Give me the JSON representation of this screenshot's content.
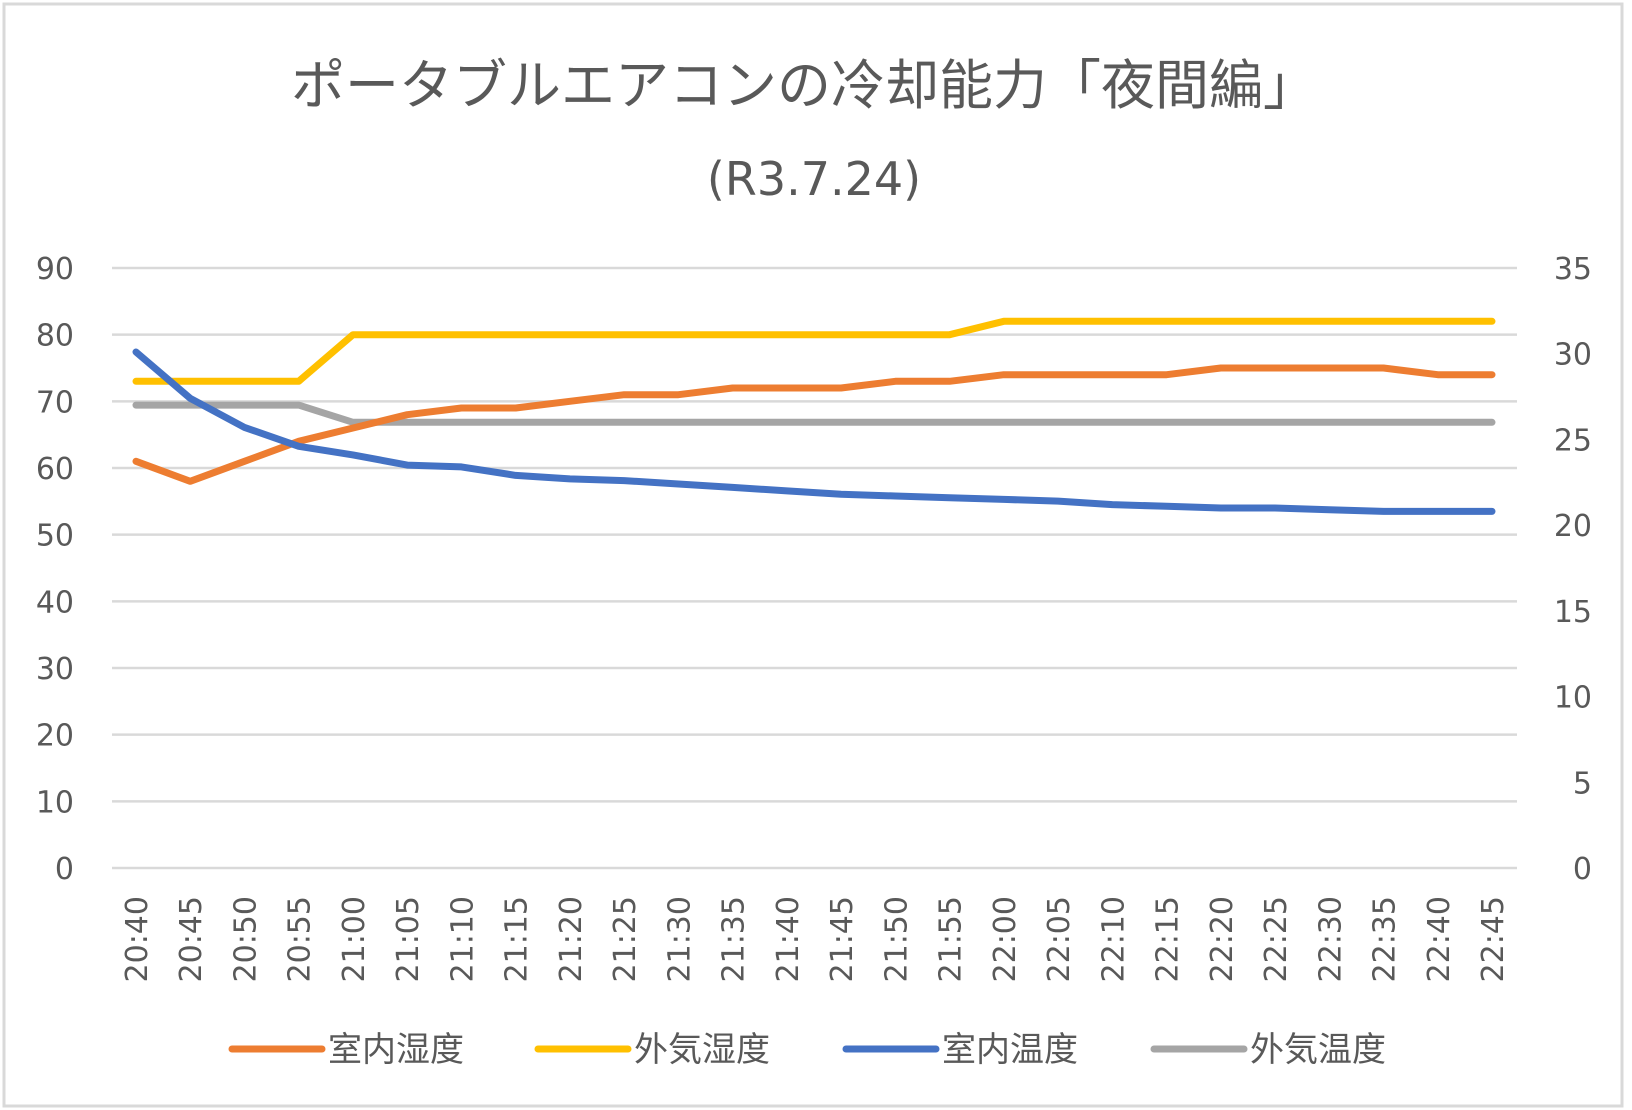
{
  "chart_data": {
    "type": "line",
    "title": "ポータブルエアコンの冷却能力「夜間編」",
    "subtitle": "(R3.7.24)",
    "xlabel": "",
    "ylabel": "",
    "y2label": "",
    "ylim": [
      0,
      90
    ],
    "y2lim": [
      0,
      35
    ],
    "yticks": [
      "0",
      "10",
      "20",
      "30",
      "40",
      "50",
      "60",
      "70",
      "80",
      "90"
    ],
    "y2ticks": [
      "0",
      "5",
      "10",
      "15",
      "20",
      "25",
      "30",
      "35"
    ],
    "grid": true,
    "legend_position": "bottom",
    "categories": [
      "20:40",
      "20:45",
      "20:50",
      "20:55",
      "21:00",
      "21:05",
      "21:10",
      "21:15",
      "21:20",
      "21:25",
      "21:30",
      "21:35",
      "21:40",
      "21:45",
      "21:50",
      "21:55",
      "22:00",
      "22:05",
      "22:10",
      "22:15",
      "22:20",
      "22:25",
      "22:30",
      "22:35",
      "22:40",
      "22:45"
    ],
    "series": [
      {
        "name": "室内湿度",
        "axis": "left",
        "color": "#ED7D31",
        "values": [
          61,
          58,
          61,
          64,
          66,
          68,
          69,
          69,
          70,
          71,
          71,
          72,
          72,
          72,
          73,
          73,
          74,
          74,
          74,
          74,
          75,
          75,
          75,
          75,
          74,
          74
        ]
      },
      {
        "name": "外気湿度",
        "axis": "left",
        "color": "#FFC000",
        "values": [
          73,
          73,
          73,
          73,
          80,
          80,
          80,
          80,
          80,
          80,
          80,
          80,
          80,
          80,
          80,
          80,
          82,
          82,
          82,
          82,
          82,
          82,
          82,
          82,
          82,
          82
        ]
      },
      {
        "name": "室内温度",
        "axis": "right",
        "color": "#4472C4",
        "values": [
          30.1,
          27.4,
          25.7,
          24.6,
          24.1,
          23.5,
          23.4,
          22.9,
          22.7,
          22.6,
          22.4,
          22.2,
          22.0,
          21.8,
          21.7,
          21.6,
          21.5,
          21.4,
          21.2,
          21.1,
          21.0,
          21.0,
          20.9,
          20.8,
          20.8,
          20.8
        ]
      },
      {
        "name": "外気温度",
        "axis": "right",
        "color": "#A5A5A5",
        "values": [
          27,
          27,
          27,
          27,
          26,
          26,
          26,
          26,
          26,
          26,
          26,
          26,
          26,
          26,
          26,
          26,
          26,
          26,
          26,
          26,
          26,
          26,
          26,
          26,
          26,
          26
        ]
      }
    ]
  }
}
